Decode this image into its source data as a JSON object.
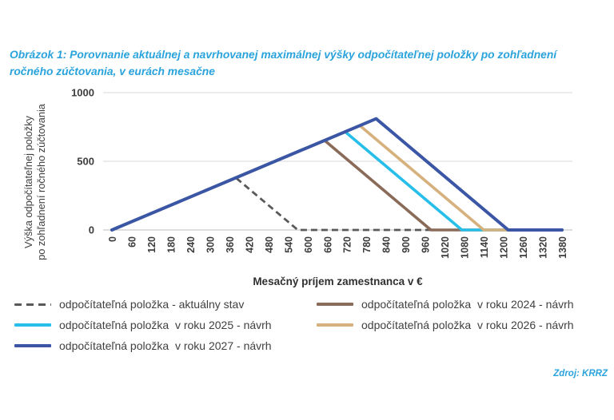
{
  "page": {
    "title_line1": "Obrázok 1: Porovnanie aktuálnej a navrhovanej maximálnej výšky odpočítateľnej položky po zohľadnení",
    "title_line2": "ročného zúčtovania, v eurách mesačne",
    "source": "Zdroj: KRRZ",
    "accent_color": "#2aa3dc"
  },
  "chart_data": {
    "type": "line",
    "title": "Porovnanie aktuálnej a navrhovanej maximálnej výšky odpočítateľnej položky po zohľadnení ročného zúčtovania, v eurách mesačne",
    "xlabel": "Mesačný príjem zamestnanca v €",
    "ylabel": [
      "Výška odpočítateľnej položky",
      "po zohľadnení ročného zúčtovania"
    ],
    "xlim": [
      0,
      1380
    ],
    "ylim": [
      0,
      1000
    ],
    "x_ticks": [
      0,
      60,
      120,
      180,
      240,
      300,
      360,
      420,
      480,
      540,
      600,
      660,
      720,
      780,
      840,
      900,
      960,
      1020,
      1080,
      1140,
      1200,
      1260,
      1320,
      1380
    ],
    "y_ticks": [
      0,
      500,
      1000
    ],
    "grid": "horizontal-y",
    "legend_position": "below",
    "series": [
      {
        "name": "odpočítateľná položka - aktuálny stav",
        "color": "#595959",
        "style": "dashed",
        "width": 2.8,
        "points": [
          [
            0,
            0
          ],
          [
            380,
            380
          ],
          [
            570,
            0
          ],
          [
            1380,
            0
          ]
        ]
      },
      {
        "name": "odpočítateľná položka  v roku 2024 - návrh",
        "color": "#8a6a58",
        "style": "solid",
        "width": 3.6,
        "points": [
          [
            0,
            0
          ],
          [
            652,
            652
          ],
          [
            978,
            0
          ],
          [
            1380,
            0
          ]
        ]
      },
      {
        "name": "odpočítateľná položka  v roku 2025 - návrh",
        "color": "#27bfe9",
        "style": "solid",
        "width": 3.6,
        "points": [
          [
            0,
            0
          ],
          [
            715,
            715
          ],
          [
            1073,
            0
          ],
          [
            1380,
            0
          ]
        ]
      },
      {
        "name": "odpočítateľná položka  v roku 2026 - návrh",
        "color": "#d6b17e",
        "style": "solid",
        "width": 3.6,
        "points": [
          [
            0,
            0
          ],
          [
            760,
            760
          ],
          [
            1140,
            0
          ],
          [
            1380,
            0
          ]
        ]
      },
      {
        "name": "odpočítateľná položka  v roku 2027 - návrh",
        "color": "#3a56a4",
        "style": "solid",
        "width": 4,
        "points": [
          [
            0,
            0
          ],
          [
            810,
            810
          ],
          [
            1215,
            0
          ],
          [
            1380,
            0
          ]
        ]
      }
    ]
  },
  "legend": {
    "columns": [
      [
        0,
        2,
        4
      ],
      [
        1,
        3
      ]
    ]
  }
}
